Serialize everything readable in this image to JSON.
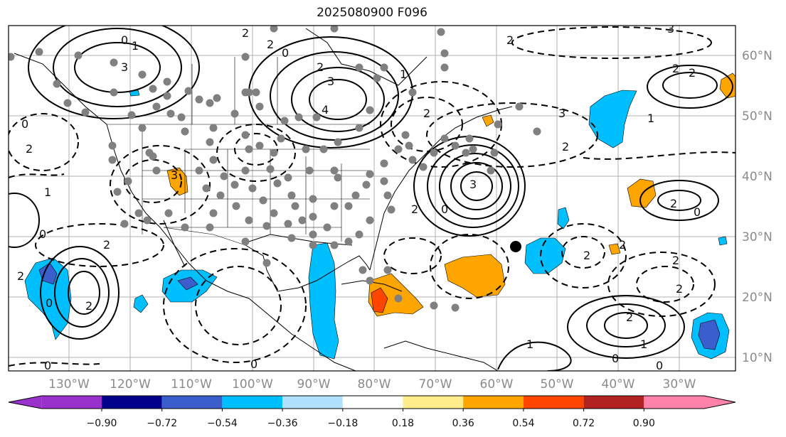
{
  "title": "2025080900 F096",
  "longitude_labels": [
    "130°W",
    "120°W",
    "110°W",
    "100°W",
    "90°W",
    "80°W",
    "70°W",
    "60°W",
    "50°W",
    "40°W",
    "30°W"
  ],
  "latitude_labels": [
    "60°N",
    "50°N",
    "40°N",
    "30°N",
    "20°N",
    "10°N"
  ],
  "colorbar": {
    "ticks": [
      "−0.90",
      "−0.72",
      "−0.54",
      "−0.36",
      "−0.18",
      "0.18",
      "0.36",
      "0.54",
      "0.72",
      "0.90"
    ],
    "colors": [
      "#9932cc",
      "#00008b",
      "#3a5fcd",
      "#00bfff",
      "#b0e2ff",
      "#ffffff",
      "#ffec8b",
      "#ffa500",
      "#ff4500",
      "#b22222",
      "#ff82ab"
    ]
  },
  "contour_labels": [
    "0",
    "1",
    "2",
    "3",
    "4"
  ],
  "colors": {
    "grid": "#b0b0b0",
    "station": "#808080",
    "contour": "#000000",
    "marker": "#000000"
  }
}
